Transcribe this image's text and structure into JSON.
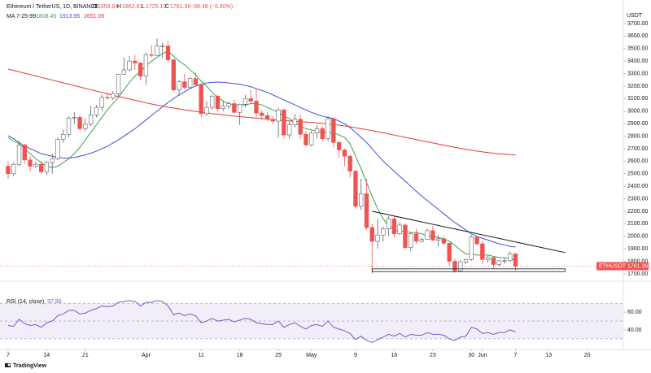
{
  "chart_data": {
    "type": "candlestick",
    "title": "Ethereum / TetherUS, 1D, BINANCE",
    "ohlc_labels": [
      "O",
      "H",
      "L",
      "C"
    ],
    "change_label": "−98.48 (−5.30%)",
    "open": [
      2560,
      2500,
      2575,
      2730,
      2610,
      2560,
      2575,
      2515,
      2590,
      2620,
      2775,
      2815,
      2945,
      2950,
      2860,
      2895,
      2970,
      3030,
      3110,
      3105,
      3140,
      3295,
      3330,
      3400,
      3385,
      3280,
      3450,
      3445,
      3520,
      3520,
      3410,
      3170,
      3235,
      3190,
      3260,
      3210,
      2980,
      3030,
      3120,
      3020,
      3040,
      3060,
      2990,
      3055,
      3100,
      3080,
      2985,
      2965,
      2935,
      2920,
      3010,
      2810,
      2890,
      2935,
      2815,
      2730,
      2825,
      2860,
      2780,
      2940,
      2750,
      2690,
      2640,
      2520,
      2240,
      2340,
      2070,
      1960,
      2010,
      2060,
      2140,
      2020,
      2090,
      1910,
      2020,
      1960,
      1975,
      2045,
      1970,
      1980,
      1945,
      1800,
      1725,
      1795,
      1815,
      1995,
      1940,
      1815,
      1830,
      1775,
      1805,
      1805,
      1859.84
    ],
    "high": [
      2600,
      2590,
      2760,
      2740,
      2640,
      2600,
      2600,
      2600,
      2660,
      2790,
      2850,
      2960,
      2990,
      2970,
      2940,
      3040,
      3050,
      3130,
      3150,
      3160,
      3300,
      3430,
      3440,
      3450,
      3390,
      3470,
      3530,
      3580,
      3550,
      3560,
      3420,
      3250,
      3300,
      3270,
      3310,
      3215,
      3080,
      3130,
      3130,
      3080,
      3080,
      3090,
      3060,
      3130,
      3170,
      3180,
      3010,
      2990,
      2960,
      3030,
      3020,
      2920,
      2980,
      2970,
      2840,
      2840,
      2890,
      2880,
      2960,
      2950,
      2760,
      2700,
      2650,
      2530,
      2460,
      2460,
      2100,
      2140,
      2080,
      2160,
      2160,
      2110,
      2100,
      2030,
      2060,
      1990,
      2060,
      2080,
      2010,
      2000,
      1950,
      1820,
      1810,
      1820,
      2010,
      2000,
      1965,
      1845,
      1840,
      1810,
      1825,
      1880,
      1862.81
    ],
    "low": [
      2460,
      2480,
      2560,
      2580,
      2520,
      2545,
      2500,
      2490,
      2500,
      2610,
      2750,
      2790,
      2900,
      2840,
      2840,
      2880,
      2950,
      3000,
      3090,
      3090,
      3120,
      3290,
      3320,
      3330,
      3250,
      3210,
      3430,
      3440,
      3420,
      3390,
      3150,
      3120,
      3170,
      3180,
      3200,
      2950,
      2960,
      3010,
      3000,
      3000,
      3020,
      2980,
      2890,
      3030,
      3060,
      2950,
      2930,
      2920,
      2900,
      2790,
      2780,
      2780,
      2870,
      2780,
      2720,
      2720,
      2780,
      2760,
      2760,
      2710,
      2630,
      2560,
      2470,
      2220,
      2210,
      2050,
      1700,
      1900,
      1960,
      2000,
      1990,
      2010,
      1900,
      1880,
      1940,
      1950,
      1970,
      1960,
      1920,
      1930,
      1760,
      1710,
      1715,
      1780,
      1805,
      1930,
      1780,
      1790,
      1740,
      1760,
      1780,
      1795,
      1725.13
    ],
    "close": [
      2500,
      2575,
      2730,
      2610,
      2560,
      2575,
      2515,
      2590,
      2620,
      2775,
      2815,
      2945,
      2950,
      2860,
      2895,
      2970,
      3030,
      3110,
      3105,
      3140,
      3295,
      3330,
      3400,
      3385,
      3280,
      3450,
      3445,
      3520,
      3520,
      3410,
      3170,
      3235,
      3190,
      3260,
      3210,
      2980,
      3030,
      3120,
      3020,
      3040,
      3060,
      2990,
      3055,
      3100,
      3080,
      2985,
      2965,
      2935,
      2920,
      3010,
      2810,
      2890,
      2935,
      2815,
      2730,
      2825,
      2860,
      2780,
      2940,
      2750,
      2690,
      2640,
      2520,
      2240,
      2340,
      2070,
      1960,
      2010,
      2060,
      2140,
      2020,
      2090,
      1910,
      2020,
      1960,
      1975,
      2045,
      1970,
      1980,
      1945,
      1800,
      1725,
      1795,
      1815,
      1995,
      1940,
      1815,
      1830,
      1775,
      1805,
      1805,
      1860,
      1761.36
    ],
    "up_color": "#ffffff",
    "up_border": "#5d606b",
    "down_color": "#ef5350",
    "ma_label": "MA 7-25-99",
    "series": [
      {
        "color": "#43a047",
        "values": [
          2790,
          2760,
          2740,
          2700,
          2660,
          2620,
          2590,
          2560,
          2550,
          2560,
          2590,
          2620,
          2660,
          2710,
          2770,
          2830,
          2890,
          2950,
          3010,
          3060,
          3110,
          3170,
          3230,
          3280,
          3320,
          3360,
          3400,
          3430,
          3460,
          3480,
          3440,
          3400,
          3370,
          3330,
          3290,
          3240,
          3200,
          3150,
          3110,
          3080,
          3060,
          3050,
          3050,
          3050,
          3060,
          3060,
          3050,
          3030,
          3010,
          2990,
          2960,
          2940,
          2910,
          2880,
          2860,
          2850,
          2840,
          2830,
          2830,
          2830,
          2810,
          2790,
          2740,
          2640,
          2540,
          2430,
          2320,
          2220,
          2140,
          2080,
          2050,
          2040,
          2040,
          2030,
          2030,
          2020,
          2000,
          2000,
          1990,
          1980,
          1960,
          1930,
          1890,
          1860,
          1860,
          1850,
          1850,
          1850,
          1840,
          1830,
          1830,
          1820,
          1808.45
        ]
      },
      {
        "color": "#3f51d8",
        "values": [
          2804,
          2780,
          2750,
          2720,
          2700,
          2680,
          2660,
          2650,
          2640,
          2630,
          2625,
          2625,
          2630,
          2640,
          2650,
          2665,
          2680,
          2700,
          2720,
          2745,
          2770,
          2800,
          2830,
          2860,
          2895,
          2930,
          2965,
          3000,
          3035,
          3070,
          3100,
          3130,
          3155,
          3180,
          3200,
          3215,
          3225,
          3230,
          3232,
          3230,
          3225,
          3220,
          3215,
          3205,
          3195,
          3180,
          3165,
          3150,
          3130,
          3110,
          3090,
          3070,
          3050,
          3030,
          3010,
          2990,
          2975,
          2960,
          2950,
          2940,
          2920,
          2900,
          2870,
          2830,
          2790,
          2750,
          2700,
          2650,
          2600,
          2560,
          2520,
          2480,
          2440,
          2400,
          2360,
          2320,
          2285,
          2250,
          2215,
          2180,
          2145,
          2110,
          2080,
          2050,
          2020,
          2000,
          1985,
          1970,
          1955,
          1940,
          1930,
          1920,
          1913.95
        ]
      },
      {
        "color": "#e53935",
        "values": [
          3336,
          3325,
          3314,
          3303,
          3292,
          3281,
          3270,
          3259,
          3248,
          3237,
          3226,
          3215,
          3204,
          3193,
          3182,
          3171,
          3160,
          3149,
          3138,
          3127,
          3117,
          3107,
          3097,
          3087,
          3077,
          3067,
          3057,
          3048,
          3040,
          3032,
          3025,
          3018,
          3011,
          3004,
          2998,
          2992,
          2986,
          2980,
          2975,
          2970,
          2965,
          2960,
          2956,
          2952,
          2948,
          2944,
          2940,
          2936,
          2932,
          2928,
          2925,
          2922,
          2919,
          2916,
          2913,
          2910,
          2906,
          2902,
          2898,
          2893,
          2888,
          2882,
          2875,
          2868,
          2860,
          2852,
          2844,
          2836,
          2827,
          2818,
          2809,
          2800,
          2791,
          2782,
          2773,
          2764,
          2755,
          2746,
          2737,
          2728,
          2719,
          2711,
          2703,
          2695,
          2688,
          2681,
          2675,
          2669,
          2664,
          2659,
          2656,
          2653,
          2651.09
        ]
      }
    ],
    "trendline": {
      "x": [
        66,
        101
      ],
      "y": [
        2200,
        1870
      ]
    },
    "support_box": {
      "x": [
        66,
        101
      ],
      "y": [
        1718,
        1740
      ]
    },
    "symbol": "ETHUSDT",
    "axis_unit": "USDT",
    "xlim": [
      -1.47,
      111.4
    ],
    "xticks": [
      {
        "value": 0,
        "label": "7"
      },
      {
        "value": 7,
        "label": "14"
      },
      {
        "value": 14,
        "label": "21"
      },
      {
        "value": 25,
        "label": "Apr"
      },
      {
        "value": 35,
        "label": "11"
      },
      {
        "value": 42,
        "label": "18"
      },
      {
        "value": 49,
        "label": "25"
      },
      {
        "value": 55,
        "label": "May"
      },
      {
        "value": 63,
        "label": "9"
      },
      {
        "value": 70,
        "label": "16"
      },
      {
        "value": 77,
        "label": "23"
      },
      {
        "value": 84,
        "label": "30"
      },
      {
        "value": 86,
        "label": "Jun"
      },
      {
        "value": 92,
        "label": "7"
      },
      {
        "value": 98,
        "label": "13"
      },
      {
        "value": 105,
        "label": "20"
      }
    ],
    "ylim": [
      1648,
      3888
    ],
    "yticks": [
      {
        "value": 1700,
        "label": "1700.00"
      },
      {
        "value": 1800,
        "label": "1800.00"
      },
      {
        "value": 1900,
        "label": "1900.00"
      },
      {
        "value": 2000,
        "label": "2000.00"
      },
      {
        "value": 2100,
        "label": "2100.00"
      },
      {
        "value": 2200,
        "label": "2200.00"
      },
      {
        "value": 2300,
        "label": "2300.00"
      },
      {
        "value": 2400,
        "label": "2400.00"
      },
      {
        "value": 2500,
        "label": "2500.00"
      },
      {
        "value": 2600,
        "label": "2600.00"
      },
      {
        "value": 2700,
        "label": "2700.00"
      },
      {
        "value": 2800,
        "label": "2800.00"
      },
      {
        "value": 2900,
        "label": "2900.00"
      },
      {
        "value": 3000,
        "label": "3000.00"
      },
      {
        "value": 3100,
        "label": "3100.00"
      },
      {
        "value": 3200,
        "label": "3200.00"
      },
      {
        "value": 3300,
        "label": "3300.00"
      },
      {
        "value": 3400,
        "label": "3400.00"
      },
      {
        "value": 3500,
        "label": "3500.00"
      },
      {
        "value": 3600,
        "label": "3600.00"
      },
      {
        "value": 3700,
        "label": "3700.00"
      }
    ],
    "grid": false
  },
  "rsi": {
    "title": "RSI (14, close)",
    "current": "37.90",
    "color": "#7e57c2",
    "values": [
      45,
      44,
      52,
      47,
      45,
      46,
      43,
      48,
      50,
      56,
      58,
      62,
      62,
      58,
      59,
      62,
      64,
      67,
      66,
      67,
      71,
      72,
      73,
      72,
      67,
      71,
      71,
      73,
      72,
      67,
      57,
      59,
      56,
      58,
      56,
      48,
      50,
      53,
      50,
      51,
      52,
      49,
      51,
      53,
      52,
      48,
      47,
      46,
      46,
      50,
      43,
      46,
      48,
      44,
      41,
      45,
      46,
      44,
      50,
      43,
      41,
      39,
      36,
      29,
      33,
      28,
      26,
      29,
      32,
      35,
      33,
      36,
      32,
      35,
      34,
      34,
      37,
      35,
      35,
      34,
      30,
      28,
      32,
      33,
      43,
      41,
      36,
      37,
      35,
      37,
      37,
      40,
      37.9
    ],
    "ylim": [
      18,
      94
    ],
    "yticks": [
      {
        "value": 40,
        "label": "40.00"
      },
      {
        "value": 60,
        "label": "60.00"
      }
    ],
    "band": [
      30,
      70
    ],
    "midline": 50
  },
  "footer": {
    "brand": "TradingView"
  }
}
